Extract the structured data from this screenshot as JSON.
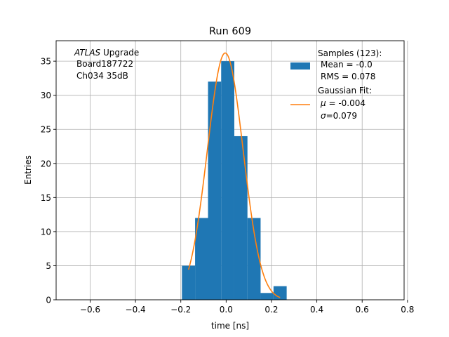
{
  "chart_data": {
    "type": "bar",
    "title": "Run 609",
    "xlabel": "time [ns]",
    "ylabel": "Entries",
    "xlim": [
      -0.75,
      0.785
    ],
    "ylim": [
      0,
      38
    ],
    "grid": true,
    "x_ticks": [
      -0.6,
      -0.4,
      -0.2,
      0.0,
      0.2,
      0.4,
      0.6,
      0.8
    ],
    "x_tick_labels": [
      "−0.6",
      "−0.4",
      "−0.2",
      "0.0",
      "0.2",
      "0.4",
      "0.6",
      "0.8"
    ],
    "y_ticks": [
      0,
      5,
      10,
      15,
      20,
      25,
      30,
      35
    ],
    "y_tick_labels": [
      "0",
      "5",
      "10",
      "15",
      "20",
      "25",
      "30",
      "35"
    ],
    "histogram": {
      "bin_edges": [
        -0.195,
        -0.137,
        -0.08,
        -0.022,
        0.036,
        0.094,
        0.152,
        0.209,
        0.267
      ],
      "counts": [
        5,
        12,
        32,
        35,
        24,
        12,
        1,
        2
      ],
      "color": "#1f77b4"
    },
    "fit": {
      "mu": -0.004,
      "sigma": 0.079,
      "amplitude": 36.2,
      "x_range": [
        -0.166,
        0.238
      ],
      "color": "#ff7f0e"
    },
    "annotation": {
      "line1_italic": "ATLAS",
      "line1_rest": " Upgrade",
      "line2": "Board187722",
      "line3": "Ch034 35dB"
    },
    "legend": {
      "placement": "top-right",
      "samples_lines": [
        "Samples (123):",
        "Mean = -0.0",
        "RMS = 0.078"
      ],
      "fit_title": "Gaussian Fit:",
      "fit_mu_symbol": "μ",
      "fit_mu_value": " = -0.004",
      "fit_sigma_symbol": "σ",
      "fit_sigma_value": "=0.079"
    }
  }
}
